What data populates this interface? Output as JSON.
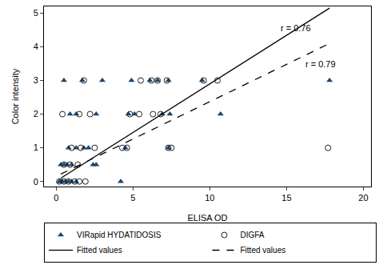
{
  "chart_data": {
    "type": "scatter",
    "x_label": "ELISA OD",
    "y_label": "Color intensity",
    "xlim": [
      -0.8,
      20.5
    ],
    "ylim": [
      -0.15,
      5.2
    ],
    "xticks": [
      0,
      5,
      10,
      15,
      20
    ],
    "yticks": [
      0,
      1,
      2,
      3,
      4,
      5
    ],
    "grid": false,
    "legend": "bottom",
    "series": [
      {
        "name": "VIRapid HYDATIDOSIS",
        "type": "scatter",
        "marker": "triangle-up",
        "color": "#1a476f",
        "x": [
          0.5,
          1.7,
          3.0,
          4.9,
          6.1,
          6.6,
          7.3,
          9.5,
          17.8,
          0.9,
          1.3,
          2.6,
          4.7,
          5.1,
          6.9,
          7.4,
          10.7,
          0.8,
          1.3,
          1.8,
          2.1,
          4.5,
          7.3,
          0.3,
          0.5,
          0.7,
          1.0,
          2.4,
          2.6,
          0.2,
          0.3,
          0.4,
          0.6,
          0.8,
          1.0,
          1.3,
          4.2
        ],
        "values": [
          3,
          3,
          3,
          3,
          3,
          3,
          3,
          3,
          3,
          2,
          2,
          2,
          2,
          2,
          2,
          2,
          2,
          1,
          1,
          1,
          1,
          1,
          1,
          0.5,
          0.5,
          0.5,
          0.5,
          0.5,
          0.5,
          0,
          0,
          0,
          0,
          0,
          0,
          0,
          0
        ]
      },
      {
        "name": "DIGFA",
        "type": "scatter",
        "marker": "circle-open",
        "color": "#222222",
        "x": [
          1.8,
          5.5,
          6.2,
          6.6,
          7.2,
          9.6,
          10.5,
          0.4,
          1.5,
          2.2,
          4.8,
          5.4,
          6.3,
          6.8,
          1.0,
          1.6,
          2.5,
          4.3,
          4.6,
          7.3,
          7.5,
          17.7,
          0.5,
          0.9,
          1.4,
          0.2,
          0.5,
          0.8,
          1.2,
          1.5,
          1.9
        ],
        "values": [
          3,
          3,
          3,
          3,
          3,
          3,
          3,
          2,
          2,
          2,
          2,
          2,
          2,
          2,
          1,
          1,
          1,
          1,
          1,
          1,
          1,
          1,
          0.5,
          0.5,
          0.5,
          0,
          0,
          0,
          0,
          0,
          0
        ]
      },
      {
        "name": "Fitted values",
        "type": "line",
        "line_style": "solid",
        "color": "#000000",
        "x": [
          0.3,
          17.8
        ],
        "values": [
          0.1,
          5.15
        ]
      },
      {
        "name": "Fitted values",
        "type": "line",
        "line_style": "dash",
        "color": "#000000",
        "x": [
          0.3,
          17.8
        ],
        "values": [
          0.22,
          4.1
        ]
      }
    ],
    "annotations": [
      {
        "text": "r = 0.76",
        "x": 15.6,
        "y": 4.55
      },
      {
        "text": "r = 0.79",
        "x": 17.2,
        "y": 3.5
      }
    ]
  }
}
